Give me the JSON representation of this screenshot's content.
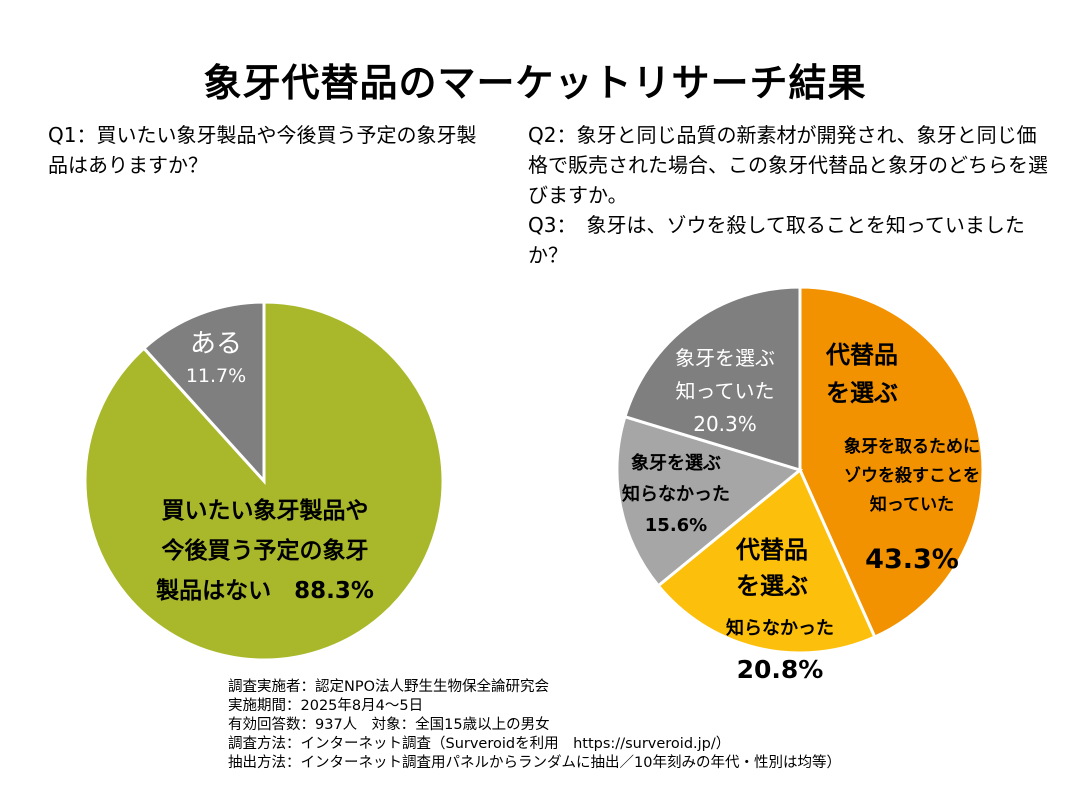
{
  "title": "象牙代替品のマーケットリサーチ結果",
  "q1": "Q1：買いたい象牙製品や今後買う予定の象牙製品はありますか？",
  "q2": "Q2：象牙と同じ品質の新素材が開発され、象牙と同じ価格で販売された場合、この象牙代替品と象牙のどちらを選びますか。",
  "q3": "Q3：　象牙は、ゾウを殺して取ることを知っていましたか？",
  "chart_data": [
    {
      "type": "pie",
      "start": "top",
      "direction": "clockwise",
      "slices": [
        {
          "label": [
            "買いたい象牙製品や",
            "今後買う予定の象牙",
            "製品はない　88.3%"
          ],
          "value": 88.3,
          "color": "#a9b82a"
        },
        {
          "label": [
            "ある",
            "11.7%"
          ],
          "value": 11.7,
          "color": "#7f7f7f"
        }
      ]
    },
    {
      "type": "pie",
      "start": "top",
      "direction": "clockwise",
      "slices": [
        {
          "label": [
            "代替品",
            "を選ぶ",
            "象牙を取るために",
            "ゾウを殺すことを",
            "知っていた",
            "43.3%"
          ],
          "value": 43.3,
          "color": "#f39200"
        },
        {
          "label": [
            "代替品",
            "を選ぶ",
            "知らなかった",
            "20.8%"
          ],
          "value": 20.8,
          "color": "#fcbf0b"
        },
        {
          "label": [
            "象牙を選ぶ",
            "知らなかった",
            "15.6%"
          ],
          "value": 15.6,
          "color": "#a6a6a6"
        },
        {
          "label": [
            "象牙を選ぶ",
            "知っていた",
            "20.3%"
          ],
          "value": 20.3,
          "color": "#7f7f7f"
        }
      ]
    }
  ],
  "footer": [
    "調査実施者：認定NPO法人野生生物保全論研究会",
    "実施期間：2025年8月4～5日",
    "有効回答数：937人　対象：全国15歳以上の男女",
    "調査方法：インターネット調査（Surveroidを利用　https://surveroid.jp/）",
    "抽出方法：インターネット調査用パネルからランダムに抽出／10年刻みの年代・性別は均等）"
  ]
}
